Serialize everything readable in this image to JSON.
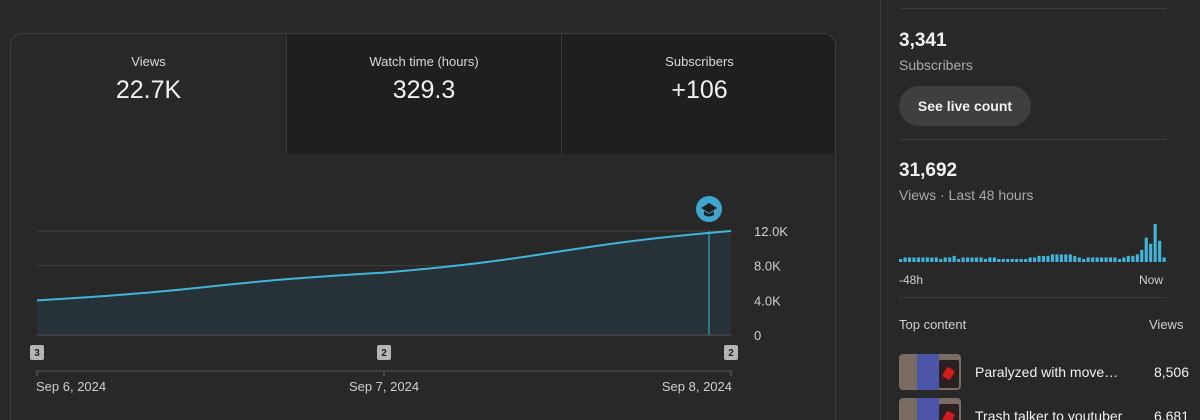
{
  "metrics": [
    {
      "label": "Views",
      "value": "22.7K"
    },
    {
      "label": "Watch time (hours)",
      "value": "329.3"
    },
    {
      "label": "Subscribers",
      "value": "+106"
    }
  ],
  "chart_data": {
    "type": "area",
    "x": [
      "Sep 6, 2024",
      "Sep 7, 2024",
      "Sep 8, 2024"
    ],
    "values": [
      4000,
      7200,
      12000
    ],
    "y_ticks": [
      "12.0K",
      "8.0K",
      "4.0K",
      "0"
    ],
    "y_tick_values": [
      12000,
      8000,
      4000,
      0
    ],
    "ylim": [
      0,
      12000
    ],
    "markers": [
      "3",
      "2",
      "2"
    ],
    "colors": {
      "line": "#41b4d9",
      "fill": "#263238",
      "grid": "#3f3f3f"
    },
    "annotation_icon": "graduation-cap-icon"
  },
  "sidebar": {
    "subscribers": {
      "value": "3,341",
      "label": "Subscribers",
      "button": "See live count"
    },
    "views48": {
      "value": "31,692",
      "label": "Views · Last 48 hours",
      "start_label": "-48h",
      "end_label": "Now",
      "bars": [
        2,
        3,
        3,
        3,
        3,
        3,
        3,
        3,
        3,
        2,
        3,
        3,
        4,
        2,
        3,
        3,
        3,
        3,
        3,
        2,
        3,
        3,
        2,
        2,
        2,
        2,
        2,
        2,
        2,
        3,
        3,
        4,
        4,
        4,
        5,
        5,
        5,
        5,
        5,
        4,
        3,
        2,
        3,
        3,
        3,
        3,
        3,
        3,
        3,
        2,
        3,
        4,
        4,
        5,
        8,
        16,
        12,
        25,
        14,
        3
      ]
    },
    "top_content": {
      "header": "Top content",
      "views_header": "Views",
      "items": [
        {
          "title": "Paralyzed with movement",
          "views": "8,506"
        },
        {
          "title": "Trash talker to youtuber",
          "views": "6,681"
        }
      ]
    }
  }
}
